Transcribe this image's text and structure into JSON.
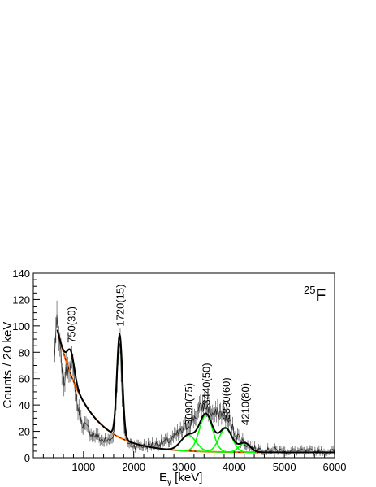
{
  "chart_data": {
    "type": "line",
    "nucleus": {
      "mass_number": "25",
      "symbol": "F"
    },
    "xlabel": {
      "main": "E",
      "sub": "γ",
      "rest": " [keV]"
    },
    "ylabel": "Counts / 20 keV",
    "xlim": [
      0,
      6000
    ],
    "ylim": [
      0,
      140
    ],
    "x_ticks": [
      1000,
      2000,
      3000,
      4000,
      5000,
      6000
    ],
    "y_ticks": [
      0,
      20,
      40,
      60,
      80,
      100,
      120,
      140
    ],
    "grid": false,
    "colors": {
      "data": "#000000",
      "total_fit": "#000000",
      "components": "#00ff00",
      "background": "#ff6600",
      "background_dash": "#000000",
      "frame": "#000000"
    },
    "background_model": {
      "a": 93,
      "tau": 590,
      "x0": 480,
      "c": 4
    },
    "peaks": [
      {
        "label": "750(30)",
        "energy": 750,
        "amplitude": 18,
        "sigma": 70
      },
      {
        "label": "1720(15)",
        "energy": 1720,
        "amplitude": 78,
        "sigma": 55
      },
      {
        "label": "3090(75)",
        "energy": 3090,
        "amplitude": 12,
        "sigma": 150
      },
      {
        "label": "3440(50)",
        "energy": 3440,
        "amplitude": 28,
        "sigma": 130
      },
      {
        "label": "3830(60)",
        "energy": 3830,
        "amplitude": 18,
        "sigma": 130
      },
      {
        "label": "4210(80)",
        "energy": 4210,
        "amplitude": 7,
        "sigma": 110
      }
    ],
    "spectrum": {
      "bin_width": 20,
      "x_start": 410,
      "x_end": 5990,
      "note_values": "points given as [E_keV, counts]",
      "points": [
        [
          410,
          73
        ],
        [
          430,
          85
        ],
        [
          450,
          96
        ],
        [
          470,
          100
        ],
        [
          490,
          95
        ],
        [
          510,
          90
        ],
        [
          530,
          80
        ],
        [
          550,
          75
        ],
        [
          570,
          70
        ],
        [
          590,
          63
        ],
        [
          610,
          58
        ],
        [
          630,
          62
        ],
        [
          650,
          64
        ],
        [
          670,
          66
        ],
        [
          690,
          70
        ],
        [
          710,
          72
        ],
        [
          730,
          72
        ],
        [
          750,
          70
        ],
        [
          770,
          70
        ],
        [
          790,
          66
        ],
        [
          810,
          60
        ],
        [
          830,
          56
        ],
        [
          850,
          50
        ],
        [
          870,
          42
        ],
        [
          890,
          38
        ],
        [
          910,
          34
        ],
        [
          930,
          30
        ],
        [
          950,
          28
        ],
        [
          1000,
          26
        ],
        [
          1050,
          23
        ],
        [
          1100,
          21
        ],
        [
          1150,
          19
        ],
        [
          1200,
          18
        ],
        [
          1250,
          16
        ],
        [
          1300,
          15
        ],
        [
          1350,
          14
        ],
        [
          1400,
          13
        ],
        [
          1450,
          13
        ],
        [
          1500,
          13
        ],
        [
          1550,
          14
        ],
        [
          1600,
          20
        ],
        [
          1640,
          35
        ],
        [
          1670,
          60
        ],
        [
          1690,
          80
        ],
        [
          1710,
          90
        ],
        [
          1720,
          88
        ],
        [
          1740,
          80
        ],
        [
          1760,
          60
        ],
        [
          1780,
          40
        ],
        [
          1800,
          25
        ],
        [
          1830,
          16
        ],
        [
          1870,
          12
        ],
        [
          1950,
          10
        ],
        [
          2050,
          9
        ],
        [
          2150,
          9
        ],
        [
          2250,
          9
        ],
        [
          2350,
          10
        ],
        [
          2450,
          10
        ],
        [
          2550,
          11
        ],
        [
          2650,
          12
        ],
        [
          2750,
          14
        ],
        [
          2850,
          17
        ],
        [
          2950,
          20
        ],
        [
          3050,
          24
        ],
        [
          3150,
          28
        ],
        [
          3250,
          33
        ],
        [
          3350,
          38
        ],
        [
          3400,
          40
        ],
        [
          3450,
          39
        ],
        [
          3500,
          37
        ],
        [
          3550,
          34
        ],
        [
          3600,
          32
        ],
        [
          3650,
          33
        ],
        [
          3700,
          34
        ],
        [
          3750,
          34
        ],
        [
          3800,
          33
        ],
        [
          3850,
          30
        ],
        [
          3900,
          27
        ],
        [
          3950,
          24
        ],
        [
          4000,
          20
        ],
        [
          4050,
          17
        ],
        [
          4100,
          15
        ],
        [
          4150,
          13
        ],
        [
          4200,
          12
        ],
        [
          4250,
          10
        ],
        [
          4300,
          9
        ],
        [
          4350,
          8
        ],
        [
          4450,
          7
        ],
        [
          4600,
          6
        ],
        [
          4800,
          6
        ],
        [
          5000,
          5
        ],
        [
          5200,
          5
        ],
        [
          5400,
          5
        ],
        [
          5600,
          5
        ],
        [
          5800,
          5
        ],
        [
          5990,
          5
        ]
      ]
    }
  }
}
